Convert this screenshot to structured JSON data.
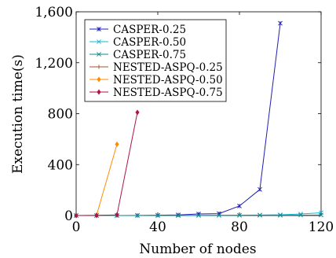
{
  "chart_data": {
    "type": "line",
    "xlabel": "Number of nodes",
    "ylabel": "Execution time(s)",
    "xlim": [
      0,
      120
    ],
    "ylim": [
      0,
      1600
    ],
    "xticks": [
      "0",
      "40",
      "80",
      "120"
    ],
    "yticks": [
      "0",
      "400",
      "800",
      "1,200",
      "1,600"
    ],
    "legend_position": "top-left",
    "grid": false,
    "series": [
      {
        "name": "CASPER-0.25",
        "color": "#1f1fb4",
        "marker": "star",
        "x": [
          0,
          10,
          20,
          30,
          40,
          50,
          60,
          70,
          80,
          90,
          100
        ],
        "y": [
          0,
          0,
          0,
          1,
          2,
          5,
          12,
          15,
          75,
          205,
          1510
        ]
      },
      {
        "name": "CASPER-0.50",
        "color": "#17b9d6",
        "marker": "x",
        "x": [
          0,
          10,
          20,
          30,
          40,
          50,
          60,
          70,
          80,
          90,
          100,
          110,
          120
        ],
        "y": [
          0,
          0,
          0,
          0,
          0,
          1,
          1,
          2,
          3,
          4,
          6,
          12,
          22
        ]
      },
      {
        "name": "CASPER-0.75",
        "color": "#118a8c",
        "marker": "x",
        "x": [
          0,
          10,
          20,
          30,
          40,
          50,
          60,
          70,
          80,
          90,
          100,
          110,
          120
        ],
        "y": [
          0,
          0,
          0,
          0,
          0,
          0,
          1,
          1,
          1,
          2,
          2,
          3,
          4
        ]
      },
      {
        "name": "NESTED-ASPQ-0.25",
        "color": "#a0522d",
        "marker": "plus",
        "x": [
          0,
          10,
          20
        ],
        "y": [
          0,
          1,
          3
        ]
      },
      {
        "name": "NESTED-ASPQ-0.50",
        "color": "#ff8c00",
        "marker": "diamond",
        "x": [
          0,
          10,
          20
        ],
        "y": [
          0,
          2,
          560
        ]
      },
      {
        "name": "NESTED-ASPQ-0.75",
        "color": "#b0124a",
        "marker": "diamond",
        "x": [
          0,
          10,
          20,
          30
        ],
        "y": [
          0,
          1,
          5,
          810
        ]
      }
    ]
  }
}
